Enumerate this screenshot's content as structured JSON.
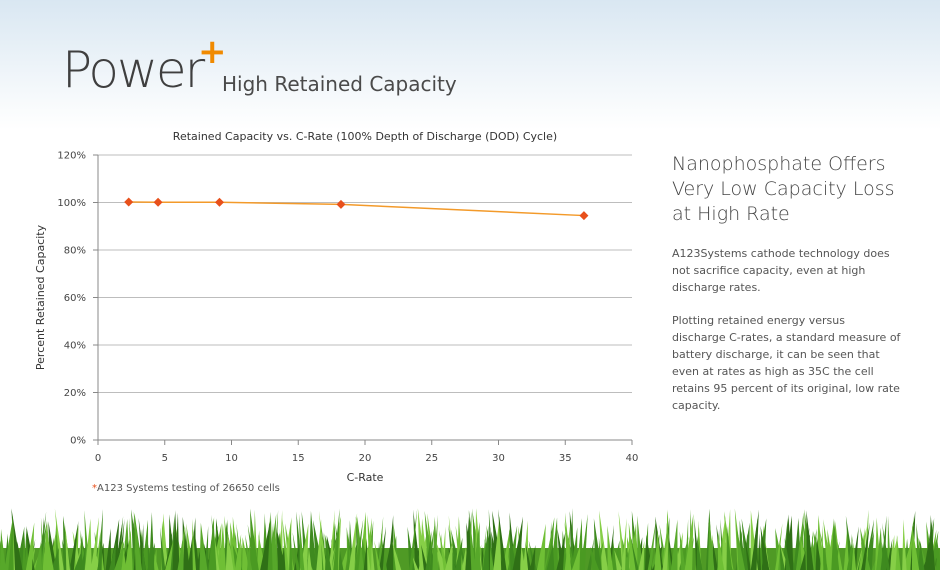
{
  "header": {
    "brand": "Power",
    "brand_plus": "+",
    "subtitle": "High Retained Capacity"
  },
  "chart_data": {
    "type": "line",
    "title": "Retained Capacity vs. C-Rate (100% Depth of Discharge (DOD) Cycle)",
    "xlabel": "C-Rate",
    "ylabel": "Percent Retained Capacity",
    "xlim": [
      0,
      40
    ],
    "ylim": [
      0,
      120
    ],
    "x_ticks": [
      0,
      5,
      10,
      15,
      20,
      25,
      30,
      35,
      40
    ],
    "y_ticks": [
      0,
      20,
      40,
      60,
      80,
      100,
      120
    ],
    "y_tick_labels": [
      "0%",
      "20%",
      "40%",
      "60%",
      "80%",
      "100%",
      "120%"
    ],
    "grid": true,
    "series": [
      {
        "x": [
          2.3,
          4.5,
          9.1,
          18.2,
          36.4
        ],
        "y": [
          100.2,
          100.1,
          100.1,
          99.2,
          94.5
        ],
        "color": "#f39a2a",
        "marker_color": "#e8501b"
      }
    ]
  },
  "footnote": {
    "star": "*",
    "text": "A123 Systems testing of 26650 cells"
  },
  "side": {
    "heading": "Nanophosphate Offers Very Low Capacity Loss at High Rate",
    "para1": "A123Systems cathode technology does not sacrifice capacity, even at high discharge rates.",
    "para2": "Plotting retained energy versus discharge C-rates, a standard measure of battery discharge, it can be seen that even at rates as high as 35C the cell retains 95 percent of its original, low rate capacity."
  }
}
